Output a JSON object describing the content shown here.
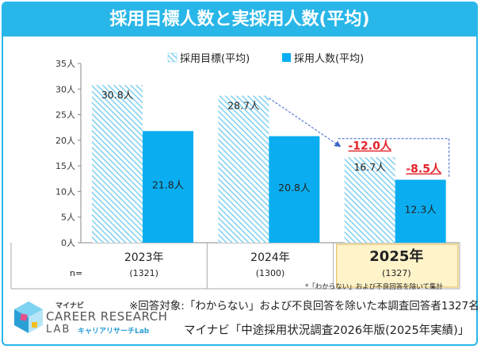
{
  "title": "採用目標人数と実採用人数(平均)",
  "chart_data": {
    "type": "bar",
    "ylim": [
      0,
      35
    ],
    "y_ticks": [
      0,
      5,
      10,
      15,
      20,
      25,
      30,
      35
    ],
    "y_unit": "人",
    "categories": [
      "2023年",
      "2024年",
      "2025年"
    ],
    "n_values": [
      "(1321)",
      "(1300)",
      "(1327)"
    ],
    "n_label": "n=",
    "highlight_category": "2025年",
    "series": [
      {
        "name": "採用目標(平均)",
        "values": [
          30.8,
          28.7,
          16.7
        ],
        "labels": [
          "30.8人",
          "28.7人",
          "16.7人"
        ]
      },
      {
        "name": "採用人数(平均)",
        "values": [
          21.8,
          20.8,
          12.3
        ],
        "labels": [
          "21.8人",
          "20.8人",
          "12.3人"
        ]
      }
    ],
    "annotations": [
      {
        "text": "-12.0人",
        "color": "#e3242b"
      },
      {
        "text": "-8.5人",
        "color": "#e3242b"
      }
    ],
    "footnote": "*「わからない」および不良回答を除いて集計"
  },
  "note": "※回答対象:「わからない」および不良回答を除いた本調査回答者1327名",
  "source": "マイナビ「中途採用状況調査2026年版(2025年実績)」",
  "logo": {
    "brand_ja": "マイナビ",
    "name_line1": "CAREER RESEARCH",
    "name_line2": "LAB",
    "name_kana": "キャリアリサーチLab"
  },
  "colors": {
    "accent": "#29b6e8",
    "bar_solid": "#0aaef0",
    "hatch": "#6cc9ee",
    "highlight_bg": "#fff3c9",
    "negative": "#e3242b"
  }
}
